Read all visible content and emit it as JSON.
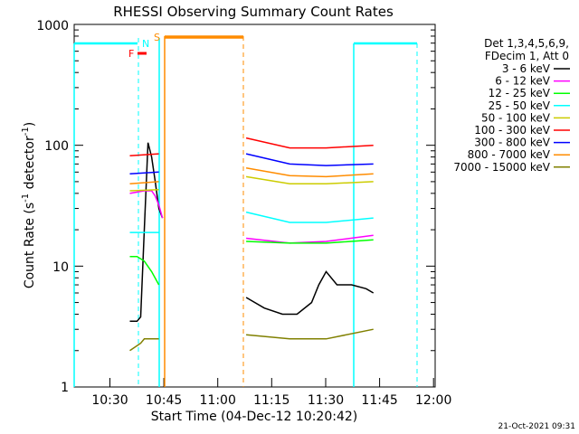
{
  "chart_data": {
    "type": "line",
    "title": "RHESSI Observing Summary Count Rates",
    "xlabel": "Start Time (04-Dec-12 10:20:42)",
    "ylabel_main": "Count Rate (s",
    "ylabel_sup1": "-1",
    "ylabel_mid": " detector",
    "ylabel_sup2": "-1",
    "ylabel_end": ")",
    "y_scale": "log",
    "ylim": [
      1,
      1000
    ],
    "xlim": [
      "10:20:42",
      "12:00"
    ],
    "x_tick_labels": [
      "10:30",
      "10:45",
      "11:00",
      "11:15",
      "11:30",
      "11:45",
      "12:00"
    ],
    "y_tick_labels": [
      "1",
      "10",
      "100",
      "1000"
    ],
    "legend_header": [
      "Det 1,3,4,5,6,9,",
      "FDecim 1, Att 0"
    ],
    "legend_placement": "right",
    "series": [
      {
        "name": "3 - 6 keV",
        "color": "#000000",
        "segments": [
          {
            "x": [
              "10:36",
              "10:38",
              "10:39",
              "10:40",
              "10:41",
              "10:42",
              "10:43",
              "10:44",
              "10:45"
            ],
            "y": [
              3.5,
              3.5,
              3.8,
              20,
              105,
              80,
              50,
              30,
              25
            ]
          },
          {
            "x": [
              "11:08",
              "11:13",
              "11:18",
              "11:22",
              "11:26",
              "11:28",
              "11:30",
              "11:33",
              "11:37",
              "11:41",
              "11:43"
            ],
            "y": [
              5.5,
              4.5,
              4,
              4,
              5,
              7,
              9,
              7,
              7,
              6.5,
              6
            ]
          }
        ]
      },
      {
        "name": "6 - 12 keV",
        "color": "#ff00ff",
        "segments": [
          {
            "x": [
              "10:36",
              "10:40",
              "10:42",
              "10:43",
              "10:44",
              "10:45"
            ],
            "y": [
              40,
              42,
              42,
              38,
              32,
              25
            ]
          },
          {
            "x": [
              "11:08",
              "11:20",
              "11:30",
              "11:43"
            ],
            "y": [
              17,
              15.5,
              16,
              18
            ]
          }
        ]
      },
      {
        "name": "12 - 25 keV",
        "color": "#00ff00",
        "segments": [
          {
            "x": [
              "10:36",
              "10:38",
              "10:40",
              "10:42",
              "10:44"
            ],
            "y": [
              12,
              12,
              11,
              9,
              7
            ]
          },
          {
            "x": [
              "11:08",
              "11:20",
              "11:30",
              "11:43"
            ],
            "y": [
              16,
              15.5,
              15.5,
              16.5
            ]
          }
        ]
      },
      {
        "name": "25 - 50 keV",
        "color": "#00ffff",
        "segments": [
          {
            "x": [
              "10:36",
              "10:44"
            ],
            "y": [
              19,
              19
            ]
          },
          {
            "x": [
              "11:08",
              "11:20",
              "11:30",
              "11:43"
            ],
            "y": [
              28,
              23,
              23,
              25
            ]
          }
        ]
      },
      {
        "name": "50 - 100 keV",
        "color": "#cccc00",
        "segments": [
          {
            "x": [
              "10:36",
              "10:44"
            ],
            "y": [
              42,
              43
            ]
          },
          {
            "x": [
              "11:08",
              "11:20",
              "11:30",
              "11:43"
            ],
            "y": [
              55,
              48,
              48,
              50
            ]
          }
        ]
      },
      {
        "name": "100 - 300 keV",
        "color": "#ff0000",
        "segments": [
          {
            "x": [
              "10:36",
              "10:44"
            ],
            "y": [
              82,
              85
            ]
          },
          {
            "x": [
              "11:08",
              "11:20",
              "11:30",
              "11:43"
            ],
            "y": [
              115,
              95,
              95,
              100
            ]
          }
        ]
      },
      {
        "name": "300 - 800 keV",
        "color": "#0000ff",
        "segments": [
          {
            "x": [
              "10:36",
              "10:44"
            ],
            "y": [
              58,
              60
            ]
          },
          {
            "x": [
              "11:08",
              "11:20",
              "11:30",
              "11:43"
            ],
            "y": [
              85,
              70,
              68,
              70
            ]
          }
        ]
      },
      {
        "name": "800 - 7000 keV",
        "color": "#ff8c00",
        "segments": [
          {
            "x": [
              "10:36",
              "10:44"
            ],
            "y": [
              48,
              50
            ]
          },
          {
            "x": [
              "11:08",
              "11:20",
              "11:30",
              "11:43"
            ],
            "y": [
              65,
              56,
              55,
              58
            ]
          }
        ]
      },
      {
        "name": "7000 - 15000 keV",
        "color": "#808000",
        "segments": [
          {
            "x": [
              "10:36",
              "10:39",
              "10:40",
              "10:44"
            ],
            "y": [
              2,
              2.3,
              2.5,
              2.5
            ]
          },
          {
            "x": [
              "11:08",
              "11:20",
              "11:30",
              "11:43"
            ],
            "y": [
              2.7,
              2.5,
              2.5,
              3
            ]
          }
        ]
      }
    ],
    "annotations": [
      {
        "label": "F",
        "color": "#ff0000"
      },
      {
        "label": "N",
        "color": "#00ffff"
      },
      {
        "label": "S",
        "color": "#ff8c00"
      }
    ],
    "timestamp": "21-Oct-2021 09:31"
  }
}
